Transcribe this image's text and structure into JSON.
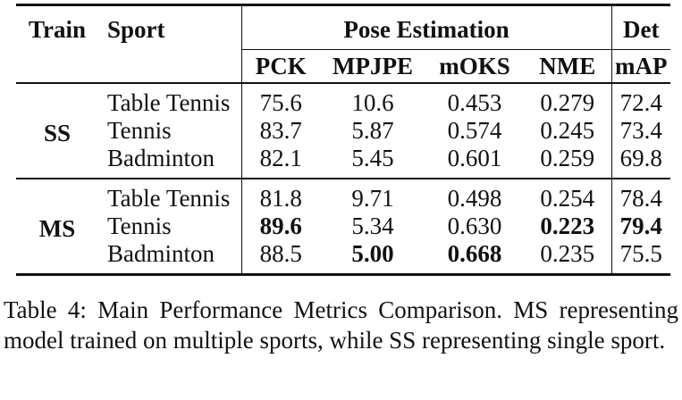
{
  "table": {
    "headers": {
      "train": "Train",
      "sport": "Sport",
      "pose_group": "Pose Estimation",
      "det_group": "Det",
      "metrics": [
        "PCK",
        "MPJPE",
        "mOKS",
        "NME",
        "mAP"
      ]
    },
    "groups": [
      {
        "train": "SS",
        "rows": [
          {
            "sport": "Table Tennis",
            "values": [
              "75.6",
              "10.6",
              "0.453",
              "0.279",
              "72.4"
            ],
            "bold": [
              false,
              false,
              false,
              false,
              false
            ]
          },
          {
            "sport": "Tennis",
            "values": [
              "83.7",
              "5.87",
              "0.574",
              "0.245",
              "73.4"
            ],
            "bold": [
              false,
              false,
              false,
              false,
              false
            ]
          },
          {
            "sport": "Badminton",
            "values": [
              "82.1",
              "5.45",
              "0.601",
              "0.259",
              "69.8"
            ],
            "bold": [
              false,
              false,
              false,
              false,
              false
            ]
          }
        ]
      },
      {
        "train": "MS",
        "rows": [
          {
            "sport": "Table Tennis",
            "values": [
              "81.8",
              "9.71",
              "0.498",
              "0.254",
              "78.4"
            ],
            "bold": [
              false,
              false,
              false,
              false,
              false
            ]
          },
          {
            "sport": "Tennis",
            "values": [
              "89.6",
              "5.34",
              "0.630",
              "0.223",
              "79.4"
            ],
            "bold": [
              true,
              false,
              false,
              true,
              true
            ]
          },
          {
            "sport": "Badminton",
            "values": [
              "88.5",
              "5.00",
              "0.668",
              "0.235",
              "75.5"
            ],
            "bold": [
              false,
              true,
              true,
              false,
              false
            ]
          }
        ]
      }
    ]
  },
  "caption": "Table 4: Main Performance Metrics Comparison. MS representing model trained on multiple sports, while SS representing single sport."
}
